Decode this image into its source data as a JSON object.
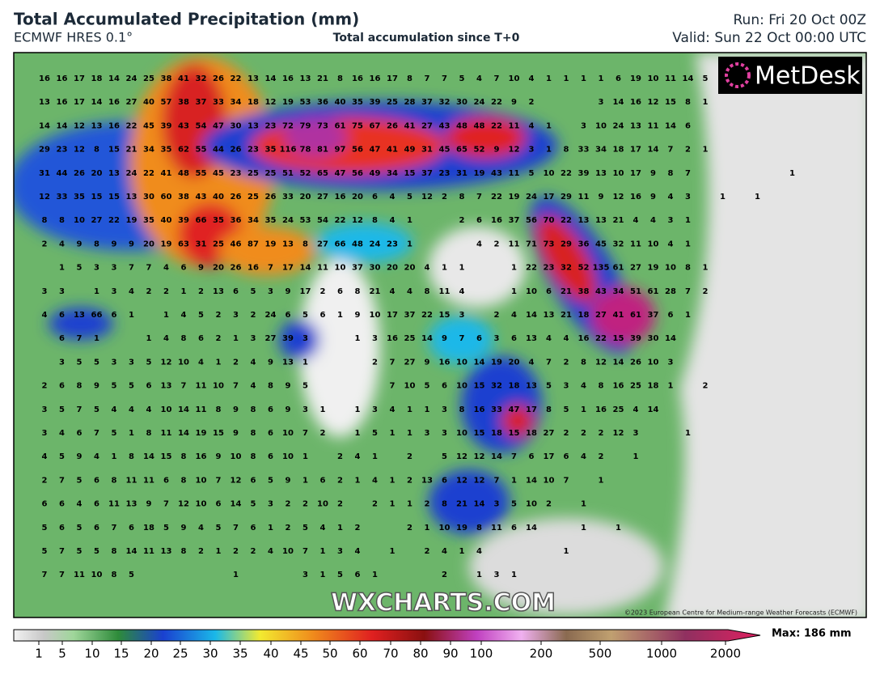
{
  "header": {
    "title": "Total Accumulated Precipitation (mm)",
    "model": "ECMWF HRES 0.1°",
    "subtitle": "Total accumulation since T+0",
    "run": "Run: Fri 20 Oct 00Z",
    "valid": "Valid: Sun 22 Oct 00:00 UTC"
  },
  "map": {
    "logo": "MetDesk",
    "watermark": "WXCHARTS.COM",
    "copyright": "©2023 European Centre for Medium-range Weather Forecasts (ECMWF)",
    "grid_rows": [
      [
        16,
        16,
        17,
        18,
        14,
        24,
        25,
        38,
        41,
        32,
        26,
        22,
        13,
        14,
        16,
        13,
        21,
        8,
        16,
        16,
        17,
        8,
        7,
        7,
        5,
        4,
        7,
        10,
        4,
        1,
        1,
        1,
        1,
        6,
        19,
        10,
        11,
        14,
        5
      ],
      [
        13,
        16,
        17,
        14,
        16,
        27,
        40,
        57,
        38,
        37,
        33,
        34,
        18,
        12,
        19,
        53,
        36,
        40,
        35,
        39,
        25,
        28,
        37,
        32,
        30,
        24,
        22,
        9,
        2,
        null,
        null,
        null,
        3,
        14,
        16,
        12,
        15,
        8,
        1
      ],
      [
        14,
        14,
        12,
        13,
        16,
        22,
        45,
        39,
        43,
        54,
        47,
        30,
        13,
        23,
        72,
        79,
        73,
        61,
        75,
        67,
        26,
        41,
        27,
        43,
        48,
        48,
        22,
        11,
        4,
        1,
        null,
        3,
        10,
        24,
        13,
        11,
        14,
        6
      ],
      [
        29,
        23,
        12,
        8,
        15,
        21,
        34,
        35,
        62,
        55,
        44,
        26,
        23,
        35,
        116,
        78,
        81,
        97,
        56,
        47,
        41,
        49,
        31,
        45,
        65,
        52,
        9,
        12,
        3,
        1,
        8,
        33,
        34,
        18,
        17,
        14,
        7,
        2,
        1
      ],
      [
        31,
        44,
        26,
        20,
        13,
        24,
        22,
        41,
        48,
        55,
        45,
        23,
        25,
        25,
        51,
        52,
        65,
        47,
        56,
        49,
        34,
        15,
        37,
        23,
        31,
        19,
        43,
        11,
        5,
        10,
        22,
        39,
        13,
        10,
        17,
        9,
        8,
        7,
        null,
        null,
        null,
        null,
        null,
        1
      ],
      [
        12,
        33,
        35,
        15,
        15,
        13,
        30,
        60,
        38,
        43,
        40,
        26,
        25,
        26,
        33,
        20,
        27,
        16,
        20,
        6,
        4,
        5,
        12,
        2,
        8,
        7,
        22,
        19,
        24,
        17,
        29,
        11,
        9,
        12,
        16,
        9,
        4,
        3,
        null,
        1,
        null,
        1
      ],
      [
        8,
        8,
        10,
        27,
        22,
        19,
        35,
        40,
        39,
        66,
        35,
        36,
        34,
        35,
        24,
        53,
        54,
        22,
        12,
        8,
        4,
        1,
        null,
        null,
        2,
        6,
        16,
        37,
        56,
        70,
        22,
        13,
        13,
        21,
        4,
        4,
        3,
        1
      ],
      [
        2,
        4,
        9,
        8,
        9,
        9,
        20,
        19,
        63,
        31,
        25,
        46,
        87,
        19,
        13,
        8,
        27,
        66,
        48,
        24,
        23,
        1,
        null,
        null,
        null,
        4,
        2,
        11,
        71,
        73,
        29,
        36,
        45,
        32,
        11,
        10,
        4,
        1
      ],
      [
        null,
        1,
        5,
        3,
        3,
        7,
        7,
        4,
        6,
        9,
        20,
        26,
        16,
        7,
        17,
        14,
        11,
        10,
        37,
        30,
        20,
        20,
        4,
        1,
        1,
        null,
        null,
        1,
        22,
        23,
        32,
        52,
        135,
        61,
        27,
        19,
        10,
        8,
        1
      ],
      [
        3,
        3,
        null,
        1,
        3,
        4,
        2,
        2,
        1,
        2,
        13,
        6,
        5,
        3,
        9,
        17,
        2,
        6,
        8,
        21,
        4,
        4,
        8,
        11,
        4,
        null,
        null,
        1,
        10,
        6,
        21,
        38,
        43,
        34,
        51,
        61,
        28,
        7,
        2
      ],
      [
        4,
        6,
        13,
        66,
        6,
        1,
        null,
        1,
        4,
        5,
        2,
        3,
        2,
        24,
        6,
        5,
        6,
        1,
        9,
        10,
        17,
        37,
        22,
        15,
        3,
        null,
        2,
        4,
        14,
        13,
        21,
        18,
        27,
        41,
        61,
        37,
        6,
        1
      ],
      [
        null,
        6,
        7,
        1,
        null,
        null,
        1,
        4,
        8,
        6,
        2,
        1,
        3,
        27,
        39,
        3,
        null,
        null,
        1,
        3,
        16,
        25,
        14,
        9,
        7,
        6,
        3,
        6,
        13,
        4,
        4,
        16,
        22,
        15,
        39,
        30,
        14
      ],
      [
        null,
        3,
        5,
        5,
        3,
        3,
        5,
        12,
        10,
        4,
        1,
        2,
        4,
        9,
        13,
        1,
        null,
        null,
        null,
        2,
        7,
        27,
        9,
        16,
        10,
        14,
        19,
        20,
        4,
        7,
        2,
        8,
        12,
        14,
        26,
        10,
        3
      ],
      [
        2,
        6,
        8,
        9,
        5,
        5,
        6,
        13,
        7,
        11,
        10,
        7,
        4,
        8,
        9,
        5,
        null,
        null,
        null,
        null,
        7,
        10,
        5,
        6,
        10,
        15,
        32,
        18,
        13,
        5,
        3,
        4,
        8,
        16,
        25,
        18,
        1,
        null,
        2
      ],
      [
        3,
        5,
        7,
        5,
        4,
        4,
        4,
        10,
        14,
        11,
        8,
        9,
        8,
        6,
        9,
        3,
        1,
        null,
        1,
        3,
        4,
        1,
        1,
        3,
        8,
        16,
        33,
        47,
        17,
        8,
        5,
        1,
        16,
        25,
        4,
        14
      ],
      [
        3,
        4,
        6,
        7,
        5,
        1,
        8,
        11,
        14,
        19,
        15,
        9,
        8,
        6,
        10,
        7,
        2,
        null,
        1,
        5,
        1,
        1,
        3,
        3,
        10,
        15,
        18,
        15,
        18,
        27,
        2,
        2,
        2,
        12,
        3,
        null,
        null,
        1
      ],
      [
        4,
        5,
        9,
        4,
        1,
        8,
        14,
        15,
        8,
        16,
        9,
        10,
        8,
        6,
        10,
        1,
        null,
        2,
        4,
        1,
        null,
        2,
        null,
        5,
        12,
        12,
        14,
        7,
        6,
        17,
        6,
        4,
        2,
        null,
        1
      ],
      [
        2,
        7,
        5,
        6,
        8,
        11,
        11,
        6,
        8,
        10,
        7,
        12,
        6,
        5,
        9,
        1,
        6,
        2,
        1,
        4,
        1,
        2,
        13,
        6,
        12,
        12,
        7,
        1,
        14,
        10,
        7,
        null,
        1
      ],
      [
        6,
        6,
        4,
        6,
        11,
        13,
        9,
        7,
        12,
        10,
        6,
        14,
        5,
        3,
        2,
        2,
        10,
        2,
        null,
        2,
        1,
        1,
        2,
        8,
        21,
        14,
        3,
        5,
        10,
        2,
        null,
        1
      ],
      [
        5,
        6,
        5,
        6,
        7,
        6,
        18,
        5,
        9,
        4,
        5,
        7,
        6,
        1,
        2,
        5,
        4,
        1,
        2,
        null,
        null,
        2,
        1,
        10,
        19,
        8,
        11,
        6,
        14,
        null,
        null,
        1,
        null,
        1
      ],
      [
        5,
        7,
        5,
        5,
        8,
        14,
        11,
        13,
        8,
        2,
        1,
        2,
        2,
        4,
        10,
        7,
        1,
        3,
        4,
        null,
        1,
        null,
        2,
        4,
        1,
        4,
        null,
        null,
        null,
        null,
        1
      ],
      [
        7,
        7,
        11,
        10,
        8,
        5,
        null,
        null,
        null,
        null,
        null,
        1,
        null,
        null,
        null,
        3,
        1,
        5,
        6,
        1,
        null,
        null,
        null,
        2,
        null,
        1,
        3,
        1
      ]
    ]
  },
  "colorbar": {
    "ticks": [
      1,
      5,
      10,
      15,
      20,
      25,
      30,
      35,
      40,
      45,
      50,
      60,
      70,
      80,
      90,
      100,
      200,
      500,
      1000,
      2000
    ],
    "max_label": "Max: 186 mm"
  }
}
